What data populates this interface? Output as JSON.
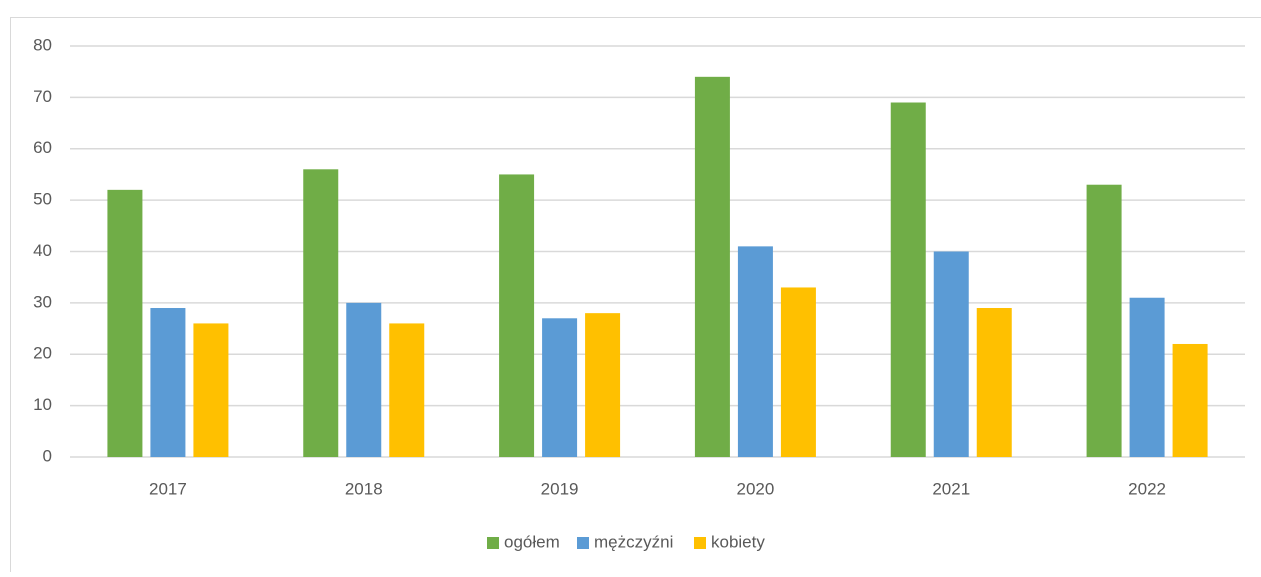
{
  "chart_data": {
    "type": "bar",
    "categories": [
      "2017",
      "2018",
      "2019",
      "2020",
      "2021",
      "2022"
    ],
    "series": [
      {
        "name": "ogółem",
        "color": "#70ad47",
        "values": [
          52,
          56,
          55,
          74,
          69,
          53
        ]
      },
      {
        "name": "mężczyźni",
        "color": "#5b9bd5",
        "values": [
          29,
          30,
          27,
          41,
          40,
          31
        ]
      },
      {
        "name": "kobiety",
        "color": "#ffc000",
        "values": [
          26,
          26,
          28,
          33,
          29,
          22
        ]
      }
    ],
    "ylim": [
      0,
      80
    ],
    "yticks": [
      0,
      10,
      20,
      30,
      40,
      50,
      60,
      70,
      80
    ],
    "grid": true,
    "legend": "bottom"
  }
}
